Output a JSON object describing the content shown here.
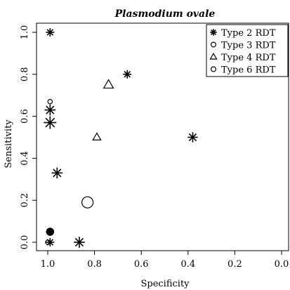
{
  "chart_data": {
    "type": "scatter",
    "title": "Plasmodium ovale",
    "xlabel": "Specificity",
    "ylabel": "Sensitivity",
    "xlim": [
      1.0,
      0.0
    ],
    "ylim": [
      0.0,
      1.0
    ],
    "x_reversed": true,
    "grid": false,
    "legend_position": "top-right",
    "x_ticks": [
      {
        "value": 1.0,
        "label": "1.0"
      },
      {
        "value": 0.8,
        "label": "0.8"
      },
      {
        "value": 0.6,
        "label": "0.6"
      },
      {
        "value": 0.4,
        "label": "0.4"
      },
      {
        "value": 0.2,
        "label": "0.2"
      },
      {
        "value": 0.0,
        "label": "0.0"
      }
    ],
    "y_ticks": [
      {
        "value": 0.0,
        "label": "0.0"
      },
      {
        "value": 0.2,
        "label": "0.2"
      },
      {
        "value": 0.4,
        "label": "0.4"
      },
      {
        "value": 0.6,
        "label": "0.6"
      },
      {
        "value": 0.8,
        "label": "0.8"
      },
      {
        "value": 1.0,
        "label": "1.0"
      }
    ],
    "series": [
      {
        "name": "Type 2 RDT",
        "marker": "asterisk",
        "points": [
          {
            "x": 0.99,
            "y": 1.0,
            "size": 1.0
          },
          {
            "x": 0.66,
            "y": 0.8,
            "size": 1.0
          },
          {
            "x": 0.99,
            "y": 0.63,
            "size": 1.3
          },
          {
            "x": 0.99,
            "y": 0.57,
            "size": 1.5
          },
          {
            "x": 0.38,
            "y": 0.5,
            "size": 1.2
          },
          {
            "x": 0.96,
            "y": 0.33,
            "size": 1.3
          },
          {
            "x": 0.99,
            "y": 0.0,
            "size": 1.0
          },
          {
            "x": 0.865,
            "y": 0.0,
            "size": 1.3
          }
        ]
      },
      {
        "name": "Type 3 RDT",
        "marker": "circle-open",
        "points": [
          {
            "x": 0.99,
            "y": 0.67,
            "size": 0.8
          },
          {
            "x": 1.0,
            "y": 0.0,
            "size": 0.8
          }
        ]
      },
      {
        "name": "Type 4 RDT",
        "marker": "triangle-open",
        "points": [
          {
            "x": 0.74,
            "y": 0.75,
            "size": 1.2
          },
          {
            "x": 0.79,
            "y": 0.5,
            "size": 1.0
          }
        ]
      },
      {
        "name": "Type 6 RDT",
        "marker": "circle-open",
        "points": [
          {
            "x": 0.83,
            "y": 0.19,
            "size": 2.0
          },
          {
            "x": 0.99,
            "y": 0.05,
            "size": 1.3,
            "filled": true
          }
        ]
      }
    ]
  }
}
